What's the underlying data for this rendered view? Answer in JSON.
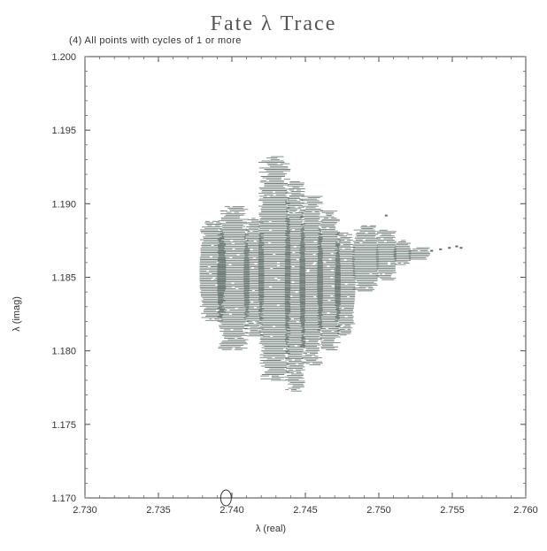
{
  "title": "Fate λ Trace",
  "subtitle": "(4) All points with cycles of     1 or more",
  "chart_data": {
    "type": "scatter",
    "title": "Fate λ Trace",
    "subtitle": "(4) All points with cycles of     1 or more",
    "xlabel": "λ (real)",
    "ylabel": "λ (imag)",
    "xlim": [
      2.73,
      2.76
    ],
    "ylim": [
      1.17,
      1.2
    ],
    "xticks": [
      "2.730",
      "2.735",
      "2.740",
      "2.745",
      "2.750",
      "2.755",
      "2.760"
    ],
    "yticks": [
      "1.170",
      "1.175",
      "1.180",
      "1.185",
      "1.190",
      "1.195",
      "1.200"
    ],
    "grid": false,
    "point_color": "#5c6b66",
    "series": [
      {
        "regions": [
          {
            "x": [
              2.7378,
              2.7396
            ],
            "y": [
              1.182,
              1.1888
            ]
          },
          {
            "x": [
              2.739,
              2.7412
            ],
            "y": [
              1.18,
              1.1898
            ]
          },
          {
            "x": [
              2.7408,
              2.7422
            ],
            "y": [
              1.181,
              1.189
            ]
          },
          {
            "x": [
              2.7418,
              2.744
            ],
            "y": [
              1.178,
              1.1932
            ]
          },
          {
            "x": [
              2.7436,
              2.745
            ],
            "y": [
              1.1772,
              1.1915
            ]
          },
          {
            "x": [
              2.7446,
              2.7462
            ],
            "y": [
              1.179,
              1.1905
            ]
          },
          {
            "x": [
              2.7458,
              2.7474
            ],
            "y": [
              1.18,
              1.1895
            ]
          },
          {
            "x": [
              2.747,
              2.7484
            ],
            "y": [
              1.181,
              1.188
            ]
          },
          {
            "x": [
              2.7482,
              2.75
            ],
            "y": [
              1.184,
              1.1885
            ]
          },
          {
            "x": [
              2.7498,
              2.7512
            ],
            "y": [
              1.1848,
              1.1882
            ]
          },
          {
            "x": [
              2.751,
              2.7522
            ],
            "y": [
              1.1858,
              1.1875
            ]
          },
          {
            "x": [
              2.752,
              2.7535
            ],
            "y": [
              1.1862,
              1.187
            ]
          }
        ],
        "isolated_points": [
          [
            2.7536,
            1.1868
          ],
          [
            2.7542,
            1.1869
          ],
          [
            2.7548,
            1.187
          ],
          [
            2.7553,
            1.1871
          ],
          [
            2.7556,
            1.187
          ],
          [
            2.7505,
            1.1892
          ]
        ]
      }
    ],
    "annotation": {
      "label": "circled tick",
      "x": 2.7396,
      "y": 1.17
    }
  }
}
